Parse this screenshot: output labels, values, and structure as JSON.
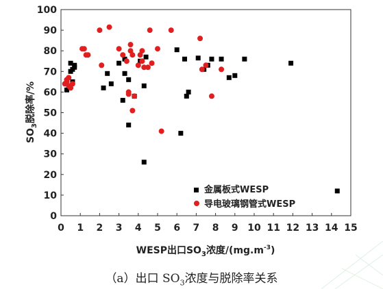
{
  "chart_data": {
    "type": "scatter",
    "ylabel_parts": {
      "pre": "SO",
      "sub": "3",
      "post": "脱除率/%"
    },
    "xlabel_parts": {
      "pre": "WESP出口SO",
      "sub": "3",
      "mid": "浓度/(mg.m",
      "sup": "-3",
      "post": ")"
    },
    "xlim": [
      0,
      15
    ],
    "ylim": [
      0,
      100
    ],
    "xticks": [
      "0",
      "1",
      "2",
      "3",
      "4",
      "5",
      "6",
      "7",
      "8",
      "9",
      "10",
      "11",
      "12",
      "13",
      "14",
      "15"
    ],
    "yticks": [
      "0",
      "10",
      "20",
      "30",
      "40",
      "50",
      "60",
      "70",
      "80",
      "90",
      "100"
    ],
    "legend_position": "bottom-right",
    "series": [
      {
        "name": "金属板式WESP",
        "marker": "square",
        "color": "#000000",
        "points": [
          [
            0.3,
            61
          ],
          [
            0.4,
            63
          ],
          [
            0.5,
            74
          ],
          [
            0.5,
            70
          ],
          [
            0.6,
            65
          ],
          [
            0.6,
            71
          ],
          [
            0.7,
            73
          ],
          [
            0.7,
            72
          ],
          [
            2.2,
            62
          ],
          [
            2.4,
            69
          ],
          [
            2.6,
            64
          ],
          [
            3.0,
            74
          ],
          [
            3.2,
            56
          ],
          [
            3.3,
            69
          ],
          [
            3.3,
            76
          ],
          [
            3.5,
            66
          ],
          [
            3.5,
            44
          ],
          [
            3.8,
            58
          ],
          [
            4.1,
            75
          ],
          [
            4.3,
            63
          ],
          [
            4.3,
            26
          ],
          [
            4.4,
            77
          ],
          [
            6.0,
            80.5
          ],
          [
            6.2,
            40
          ],
          [
            6.4,
            76
          ],
          [
            6.5,
            58
          ],
          [
            6.6,
            60
          ],
          [
            7.1,
            76.5
          ],
          [
            7.4,
            71
          ],
          [
            7.6,
            73
          ],
          [
            7.8,
            76
          ],
          [
            8.3,
            76
          ],
          [
            8.7,
            67
          ],
          [
            9.0,
            68
          ],
          [
            9.5,
            76
          ],
          [
            11.9,
            74
          ],
          [
            14.3,
            12
          ]
        ]
      },
      {
        "name": "导电玻璃钢管式WESP",
        "marker": "circle",
        "color": "#e02020",
        "points": [
          [
            0.2,
            64
          ],
          [
            0.3,
            65
          ],
          [
            0.3,
            66
          ],
          [
            0.4,
            67
          ],
          [
            0.4,
            63
          ],
          [
            0.5,
            62
          ],
          [
            0.6,
            64
          ],
          [
            1.1,
            81
          ],
          [
            1.2,
            81
          ],
          [
            1.3,
            78
          ],
          [
            1.4,
            78
          ],
          [
            2.0,
            90
          ],
          [
            2.1,
            73
          ],
          [
            2.5,
            91.5
          ],
          [
            3.0,
            81
          ],
          [
            3.2,
            78
          ],
          [
            3.4,
            75
          ],
          [
            3.5,
            59
          ],
          [
            3.5,
            60
          ],
          [
            3.6,
            83
          ],
          [
            3.6,
            80
          ],
          [
            3.7,
            51
          ],
          [
            3.7,
            78
          ],
          [
            3.8,
            58
          ],
          [
            4.0,
            73
          ],
          [
            4.1,
            78
          ],
          [
            4.2,
            80
          ],
          [
            4.2,
            75
          ],
          [
            4.3,
            72
          ],
          [
            4.5,
            72
          ],
          [
            4.6,
            90
          ],
          [
            4.7,
            74
          ],
          [
            5.0,
            81
          ],
          [
            5.2,
            41
          ],
          [
            5.7,
            90
          ],
          [
            7.2,
            86
          ],
          [
            7.3,
            71
          ],
          [
            7.5,
            73
          ],
          [
            7.8,
            58
          ],
          [
            8.3,
            71
          ]
        ]
      }
    ]
  },
  "caption_parts": {
    "pre": "（a）出口 SO",
    "sub": "3",
    "post": "浓度与脱除率关系"
  }
}
